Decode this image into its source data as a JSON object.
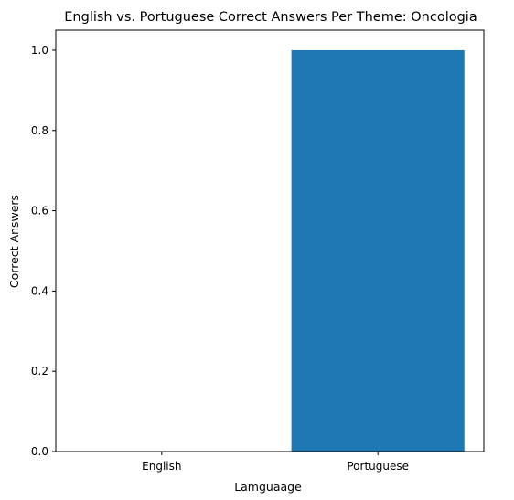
{
  "chart_data": {
    "type": "bar",
    "title": "English vs. Portuguese Correct Answers Per Theme: Oncologia",
    "categories": [
      "English",
      "Portuguese"
    ],
    "values": [
      0,
      1
    ],
    "xlabel": "Lamguaage",
    "ylabel": "Correct Answers",
    "ylim": [
      0,
      1.05
    ],
    "yticks": [
      0.0,
      0.2,
      0.4,
      0.6,
      0.8,
      1.0
    ],
    "ytick_labels": [
      "0.0",
      "0.2",
      "0.4",
      "0.6",
      "0.8",
      "1.0"
    ],
    "bar_color": "#1f77b4",
    "grid": false,
    "legend": "none"
  }
}
